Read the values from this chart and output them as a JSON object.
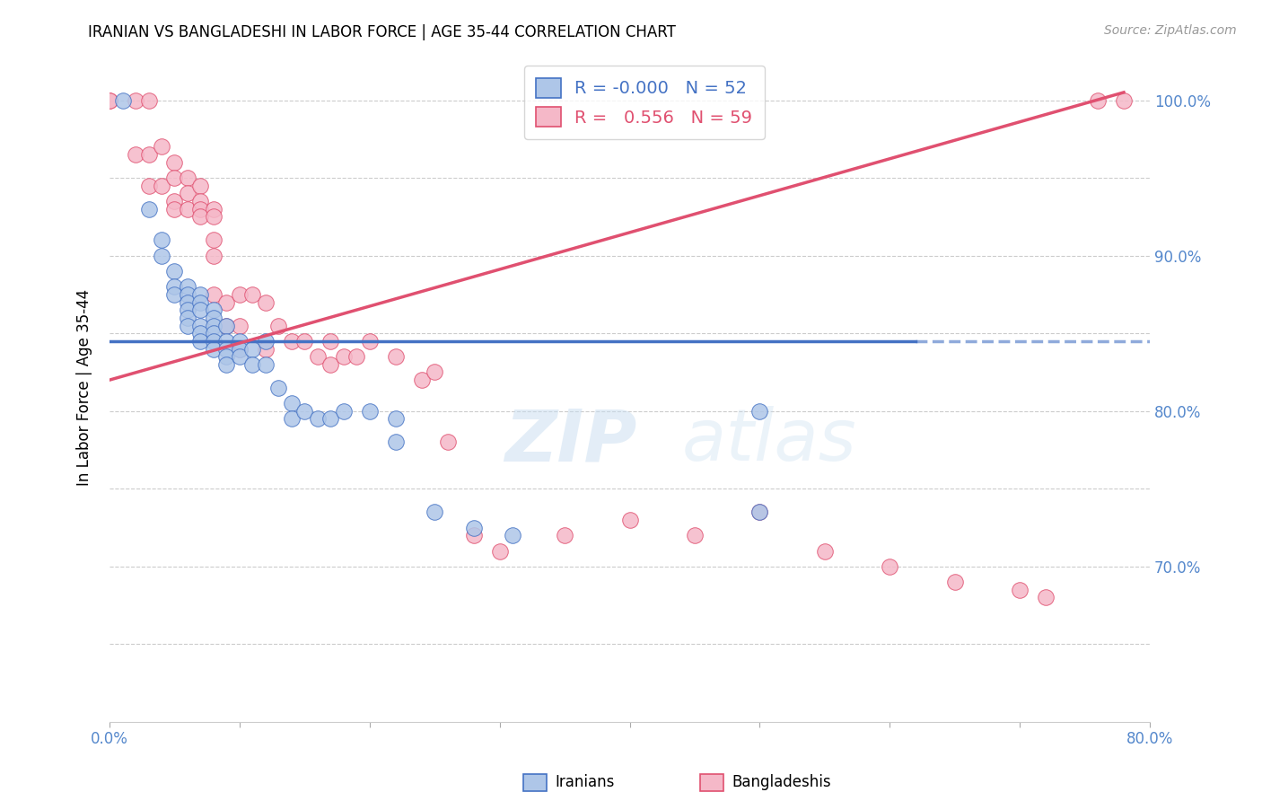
{
  "title": "IRANIAN VS BANGLADESHI IN LABOR FORCE | AGE 35-44 CORRELATION CHART",
  "source": "Source: ZipAtlas.com",
  "ylabel": "In Labor Force | Age 35-44",
  "xlim": [
    0.0,
    0.8
  ],
  "ylim": [
    0.6,
    1.03
  ],
  "x_ticks": [
    0.0,
    0.1,
    0.2,
    0.3,
    0.4,
    0.5,
    0.6,
    0.7,
    0.8
  ],
  "x_tick_labels": [
    "0.0%",
    "",
    "",
    "",
    "",
    "",
    "",
    "",
    "80.0%"
  ],
  "y_ticks": [
    0.65,
    0.7,
    0.75,
    0.8,
    0.85,
    0.9,
    0.95,
    1.0
  ],
  "y_tick_labels": [
    "",
    "70.0%",
    "",
    "80.0%",
    "",
    "90.0%",
    "",
    "100.0%"
  ],
  "iranian_color": "#aec6e8",
  "bangladeshi_color": "#f5b8c8",
  "trendline_iranian_color": "#4472c4",
  "trendline_bangladeshi_color": "#e05070",
  "r_iranian": -0.0,
  "n_iranian": 52,
  "r_bangladeshi": 0.556,
  "n_bangladeshi": 59,
  "iranian_trendline_y": 0.845,
  "iranian_trendline_x_solid_end": 0.62,
  "bangladeshi_trendline_x0": 0.0,
  "bangladeshi_trendline_y0": 0.82,
  "bangladeshi_trendline_x1": 0.78,
  "bangladeshi_trendline_y1": 1.005,
  "iranians_x": [
    0.01,
    0.03,
    0.04,
    0.04,
    0.05,
    0.05,
    0.05,
    0.06,
    0.06,
    0.06,
    0.06,
    0.06,
    0.06,
    0.07,
    0.07,
    0.07,
    0.07,
    0.07,
    0.07,
    0.08,
    0.08,
    0.08,
    0.08,
    0.08,
    0.08,
    0.09,
    0.09,
    0.09,
    0.09,
    0.09,
    0.1,
    0.1,
    0.1,
    0.11,
    0.11,
    0.12,
    0.12,
    0.13,
    0.14,
    0.14,
    0.15,
    0.16,
    0.17,
    0.18,
    0.2,
    0.22,
    0.22,
    0.25,
    0.28,
    0.31,
    0.5,
    0.5
  ],
  "iranians_y": [
    1.0,
    0.93,
    0.91,
    0.9,
    0.89,
    0.88,
    0.875,
    0.88,
    0.875,
    0.87,
    0.865,
    0.86,
    0.855,
    0.875,
    0.87,
    0.865,
    0.855,
    0.85,
    0.845,
    0.865,
    0.86,
    0.855,
    0.85,
    0.845,
    0.84,
    0.855,
    0.845,
    0.84,
    0.835,
    0.83,
    0.845,
    0.84,
    0.835,
    0.84,
    0.83,
    0.845,
    0.83,
    0.815,
    0.805,
    0.795,
    0.8,
    0.795,
    0.795,
    0.8,
    0.8,
    0.795,
    0.78,
    0.735,
    0.725,
    0.72,
    0.8,
    0.735
  ],
  "bangladeshis_x": [
    0.0,
    0.0,
    0.02,
    0.02,
    0.03,
    0.03,
    0.03,
    0.04,
    0.04,
    0.05,
    0.05,
    0.05,
    0.05,
    0.06,
    0.06,
    0.06,
    0.07,
    0.07,
    0.07,
    0.07,
    0.08,
    0.08,
    0.08,
    0.08,
    0.08,
    0.09,
    0.09,
    0.1,
    0.1,
    0.1,
    0.11,
    0.12,
    0.12,
    0.13,
    0.14,
    0.15,
    0.16,
    0.17,
    0.17,
    0.18,
    0.19,
    0.2,
    0.22,
    0.24,
    0.25,
    0.26,
    0.28,
    0.3,
    0.35,
    0.4,
    0.45,
    0.5,
    0.55,
    0.6,
    0.65,
    0.7,
    0.72,
    0.78,
    0.76
  ],
  "bangladeshis_y": [
    1.0,
    1.0,
    1.0,
    0.965,
    1.0,
    0.965,
    0.945,
    0.97,
    0.945,
    0.96,
    0.95,
    0.935,
    0.93,
    0.95,
    0.94,
    0.93,
    0.945,
    0.935,
    0.93,
    0.925,
    0.93,
    0.925,
    0.91,
    0.9,
    0.875,
    0.87,
    0.855,
    0.875,
    0.855,
    0.84,
    0.875,
    0.87,
    0.84,
    0.855,
    0.845,
    0.845,
    0.835,
    0.845,
    0.83,
    0.835,
    0.835,
    0.845,
    0.835,
    0.82,
    0.825,
    0.78,
    0.72,
    0.71,
    0.72,
    0.73,
    0.72,
    0.735,
    0.71,
    0.7,
    0.69,
    0.685,
    0.68,
    1.0,
    1.0
  ],
  "watermark_zip": "ZIP",
  "watermark_atlas": "atlas",
  "grid_color": "#cccccc"
}
